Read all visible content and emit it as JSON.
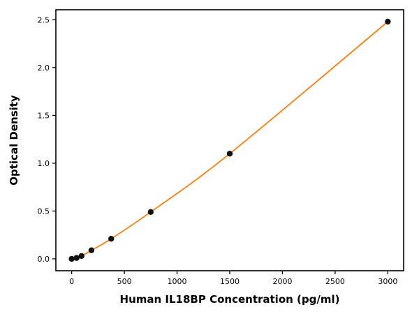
{
  "chart_data": {
    "type": "line",
    "title": "",
    "xlabel": "Human IL18BP Concentration (pg/ml)",
    "ylabel": "Optical Density",
    "x": [
      0,
      46.9,
      93.8,
      187.5,
      375,
      750,
      1500,
      3000
    ],
    "y": [
      0.0,
      0.01,
      0.03,
      0.09,
      0.21,
      0.49,
      1.1,
      2.48
    ],
    "xlim": [
      -150,
      3150
    ],
    "ylim": [
      -0.124,
      2.604
    ],
    "xticks": [
      0,
      500,
      1000,
      1500,
      2000,
      2500,
      3000
    ],
    "xtick_labels": [
      "0",
      "500",
      "1000",
      "1500",
      "2000",
      "2500",
      "3000"
    ],
    "yticks": [
      0.0,
      0.5,
      1.0,
      1.5,
      2.0,
      2.5
    ],
    "ytick_labels": [
      "0.0",
      "0.5",
      "1.0",
      "1.5",
      "2.0",
      "2.5"
    ],
    "grid": false,
    "legend": "none",
    "line_color": "#ff7f0e",
    "marker_color": "#111111",
    "frame_color": "#000000",
    "tick_label_color": "#000000"
  }
}
